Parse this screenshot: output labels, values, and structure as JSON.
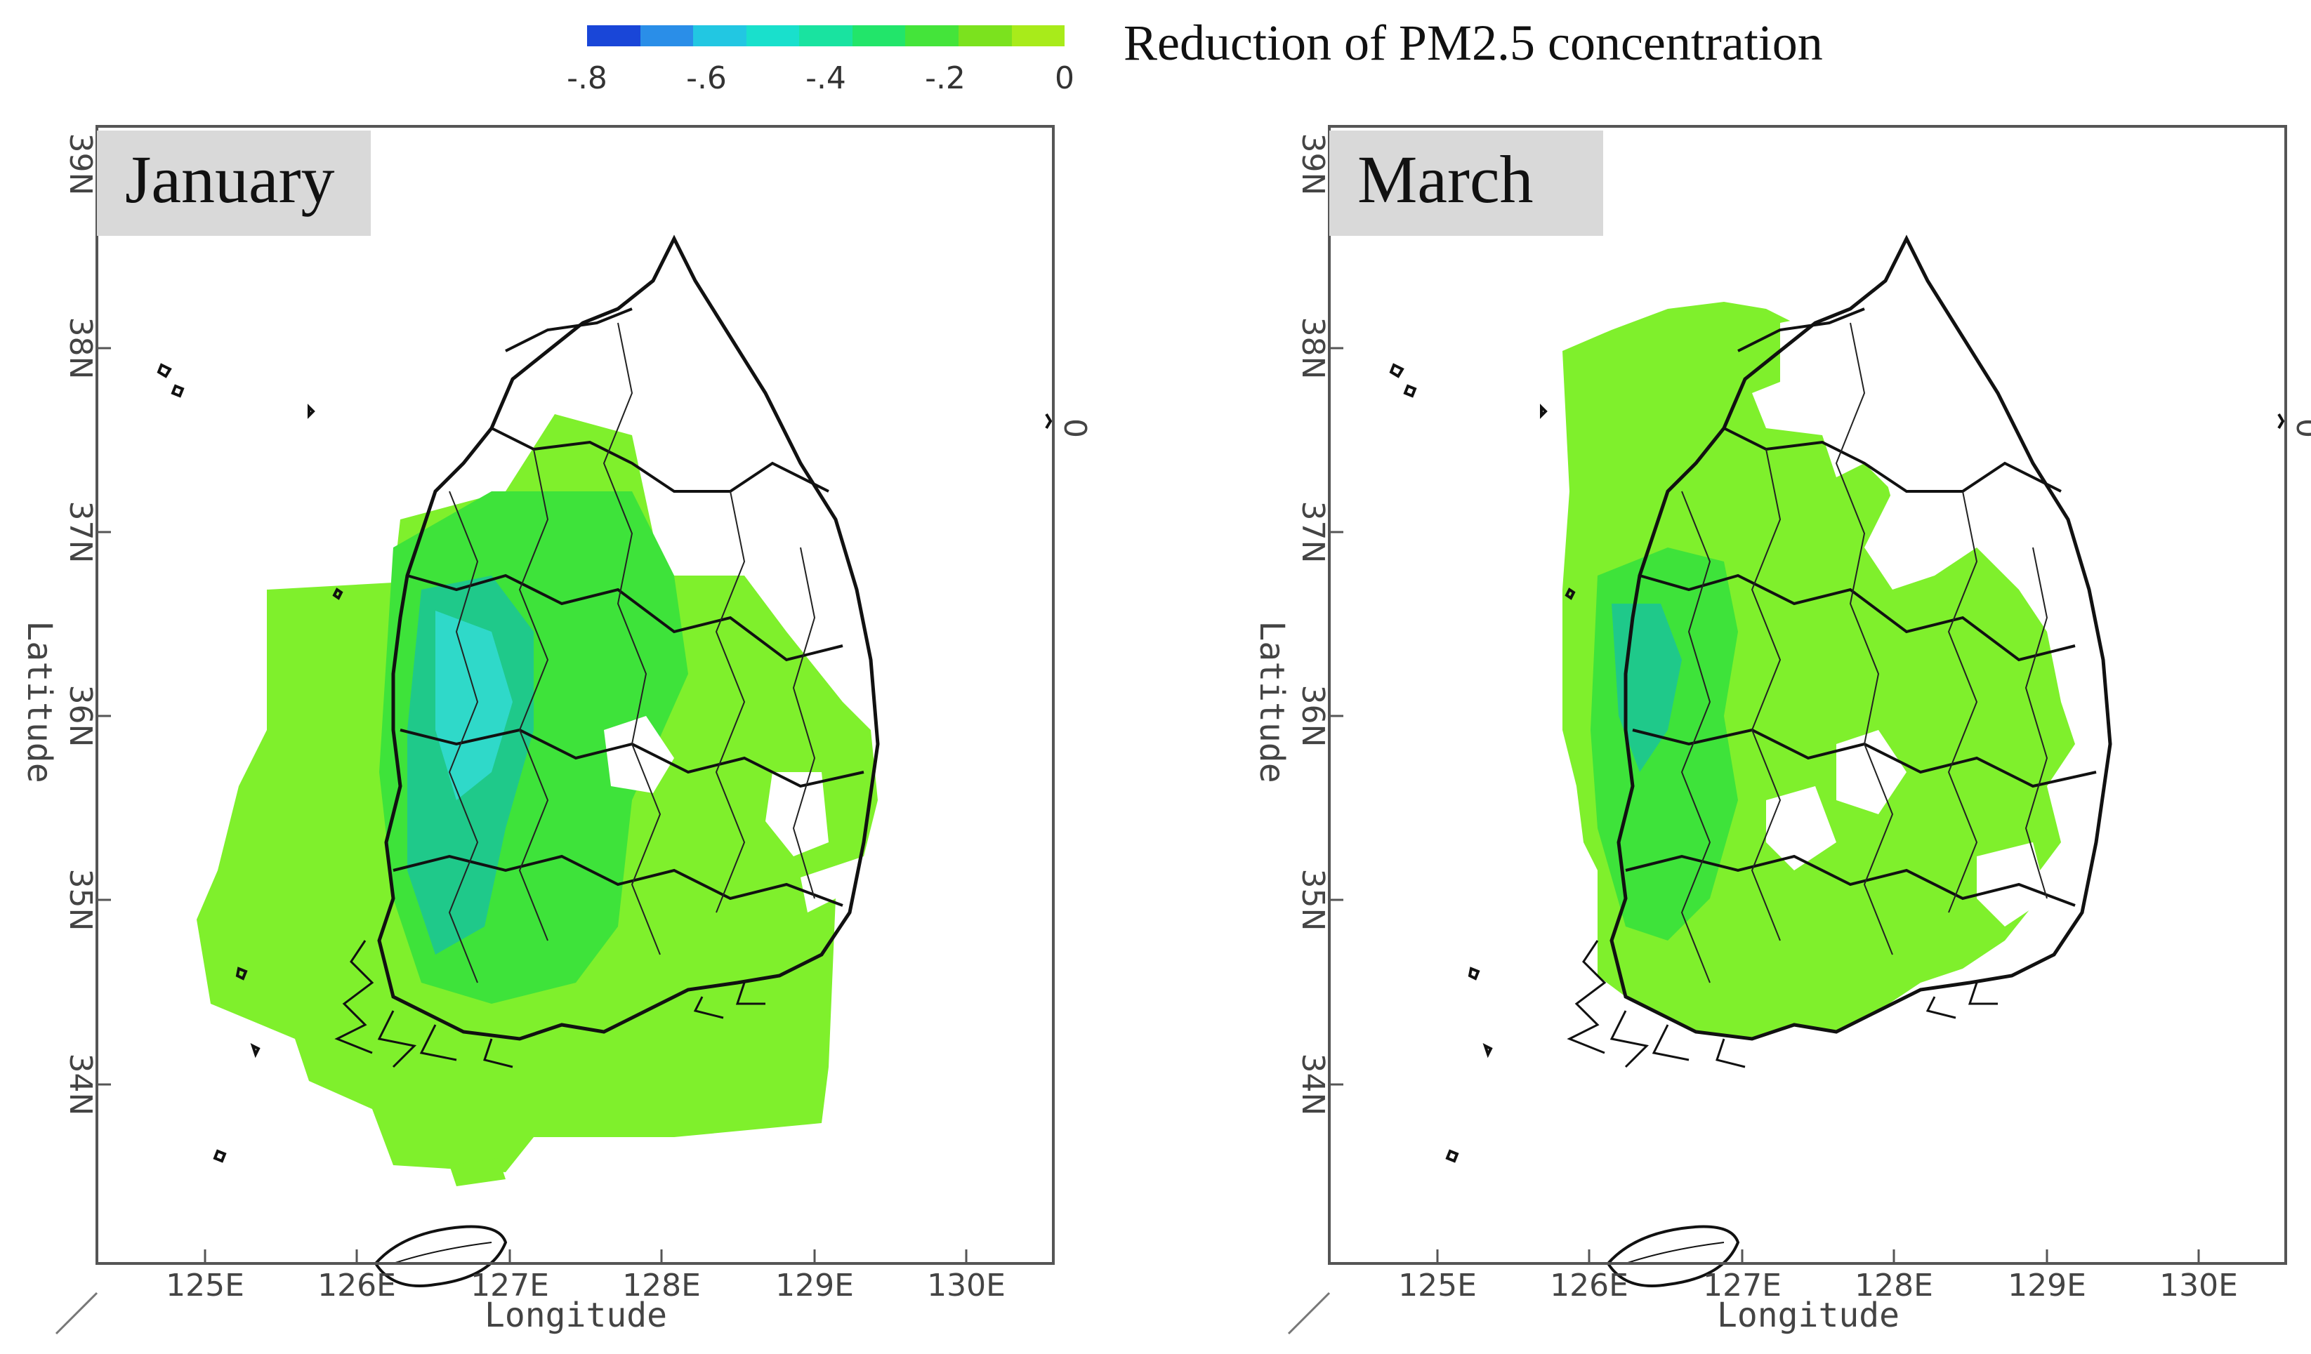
{
  "legend": {
    "title": "Reduction of PM2.5 concentration",
    "ticks": [
      "-.8",
      "-.6",
      "-.4",
      "-.2",
      "0"
    ],
    "colors": [
      "#1946d8",
      "#2a8ee8",
      "#22c7e2",
      "#19e0cc",
      "#19e3a0",
      "#22e56a",
      "#44e43a",
      "#7be21e",
      "#a8eb1a"
    ]
  },
  "panels": [
    {
      "title": "January",
      "x_ticks": [
        "125E",
        "126E",
        "127E",
        "128E",
        "129E",
        "130E"
      ],
      "y_ticks": [
        "34N",
        "35N",
        "36N",
        "37N",
        "38N",
        "39N"
      ],
      "xlabel": "Longitude",
      "ylabel": "Latitude",
      "right_tick": "0"
    },
    {
      "title": "March",
      "x_ticks": [
        "125E",
        "126E",
        "127E",
        "128E",
        "129E",
        "130E"
      ],
      "y_ticks": [
        "34N",
        "35N",
        "36N",
        "37N",
        "38N",
        "39N"
      ],
      "xlabel": "Longitude",
      "ylabel": "Latitude",
      "right_tick": "0"
    }
  ],
  "colors": {
    "light_green": "#7ff02c",
    "mid_green": "#3ee33a",
    "cyan": "#2fd9c9",
    "blue_green": "#1fc98a",
    "outline": "#111111",
    "frame": "#555555",
    "title_box": "#d9d9d9"
  }
}
